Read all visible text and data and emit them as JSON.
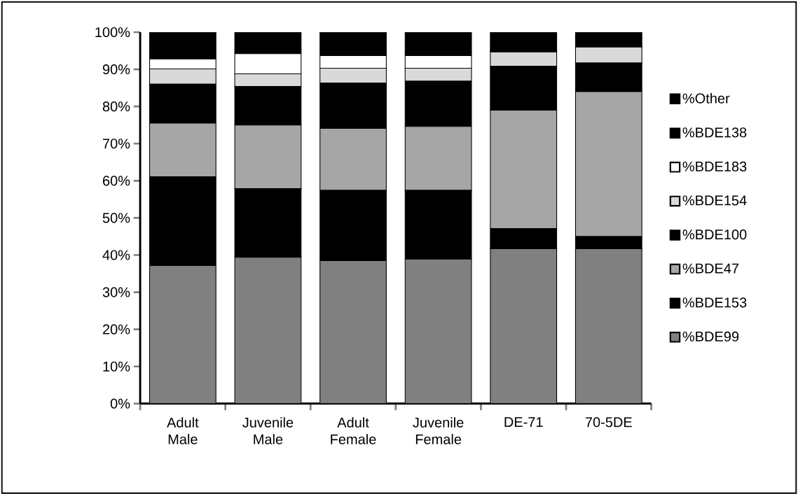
{
  "chart_data": {
    "type": "bar",
    "stacked": true,
    "legend": "right",
    "categories": [
      "Adult Male",
      "Juvenile Male",
      "Adult Female",
      "Juvenile Female",
      "DE-71",
      "70-5DE"
    ],
    "ylim": [
      0,
      100
    ],
    "yticks": [
      {
        "value": 0,
        "label": "0%"
      },
      {
        "value": 10,
        "label": "10%"
      },
      {
        "value": 20,
        "label": "20%"
      },
      {
        "value": 30,
        "label": "30%"
      },
      {
        "value": 40,
        "label": "40%"
      },
      {
        "value": 50,
        "label": "50%"
      },
      {
        "value": 60,
        "label": "60%"
      },
      {
        "value": 70,
        "label": "70%"
      },
      {
        "value": 80,
        "label": "80%"
      },
      {
        "value": 90,
        "label": "90%"
      },
      {
        "value": 100,
        "label": "100%"
      }
    ],
    "series": [
      {
        "name": "%BDE99",
        "color": "#808080",
        "values": [
          37.2,
          39.4,
          38.5,
          38.9,
          41.7,
          41.7
        ]
      },
      {
        "name": "%BDE153",
        "color": "#000000",
        "values": [
          23.9,
          18.5,
          18.9,
          18.5,
          5.4,
          3.3
        ]
      },
      {
        "name": "%BDE47",
        "color": "#a6a6a6",
        "values": [
          14.4,
          17.1,
          16.7,
          17.2,
          31.9,
          39.0
        ]
      },
      {
        "name": "%BDE100",
        "color": "#000000",
        "values": [
          10.5,
          10.4,
          12.2,
          12.2,
          11.8,
          7.7
        ]
      },
      {
        "name": "%BDE154",
        "color": "#d9d9d9",
        "values": [
          4.1,
          3.4,
          4.0,
          3.5,
          3.9,
          4.3
        ]
      },
      {
        "name": "%BDE183",
        "color": "#ffffff",
        "values": [
          2.7,
          5.4,
          3.4,
          3.4,
          0,
          0
        ]
      },
      {
        "name": "%BDE138",
        "color": "#000000",
        "values": [
          1.2,
          1.0,
          1.0,
          1.0,
          0.5,
          0.5
        ]
      },
      {
        "name": "%Other",
        "color": "#000000",
        "values": [
          6.0,
          4.8,
          5.3,
          5.3,
          4.8,
          3.5
        ]
      }
    ]
  }
}
